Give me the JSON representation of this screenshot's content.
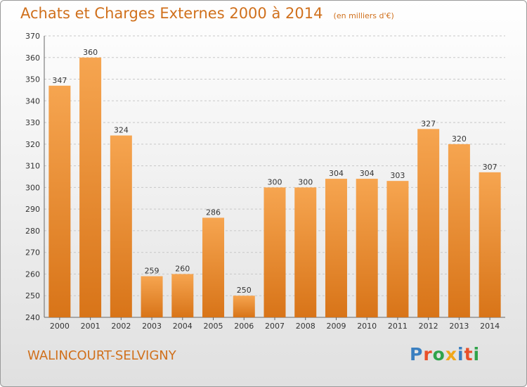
{
  "colors": {
    "accent": "#d0701c",
    "bar_light": "#f6a550",
    "bar_dark": "#d87418",
    "grid": "#c8c8c8",
    "axis_text": "#333333"
  },
  "header": {
    "title": "Achats et Charges Externes 2000 à 2014",
    "unit": "(en milliers d'€)"
  },
  "footer": {
    "commune": "WALINCOURT-SELVIGNY",
    "brand": "Proxiti",
    "brand_colors": [
      "#3a7fc1",
      "#e8502a",
      "#2fa34a",
      "#f0a81a",
      "#3a7fc1",
      "#e8502a",
      "#2fa34a"
    ]
  },
  "chart_data": {
    "type": "bar",
    "title": "Achats et Charges Externes 2000 à 2014",
    "subtitle": "(en milliers d'€)",
    "xlabel": "",
    "ylabel": "",
    "categories": [
      "2000",
      "2001",
      "2002",
      "2003",
      "2004",
      "2005",
      "2006",
      "2007",
      "2008",
      "2009",
      "2010",
      "2011",
      "2012",
      "2013",
      "2014"
    ],
    "values": [
      347,
      360,
      324,
      259,
      260,
      286,
      250,
      300,
      300,
      304,
      304,
      303,
      327,
      320,
      307
    ],
    "data_labels": [
      "347",
      "360",
      "324",
      "259",
      "260",
      "286",
      "250",
      "300",
      "300",
      "304",
      "304",
      "303",
      "327",
      "320",
      "307"
    ],
    "ylim": [
      240,
      370
    ],
    "yticks": [
      240,
      250,
      260,
      270,
      280,
      290,
      300,
      310,
      320,
      330,
      340,
      350,
      360,
      370
    ],
    "grid": true,
    "legend": "none"
  }
}
